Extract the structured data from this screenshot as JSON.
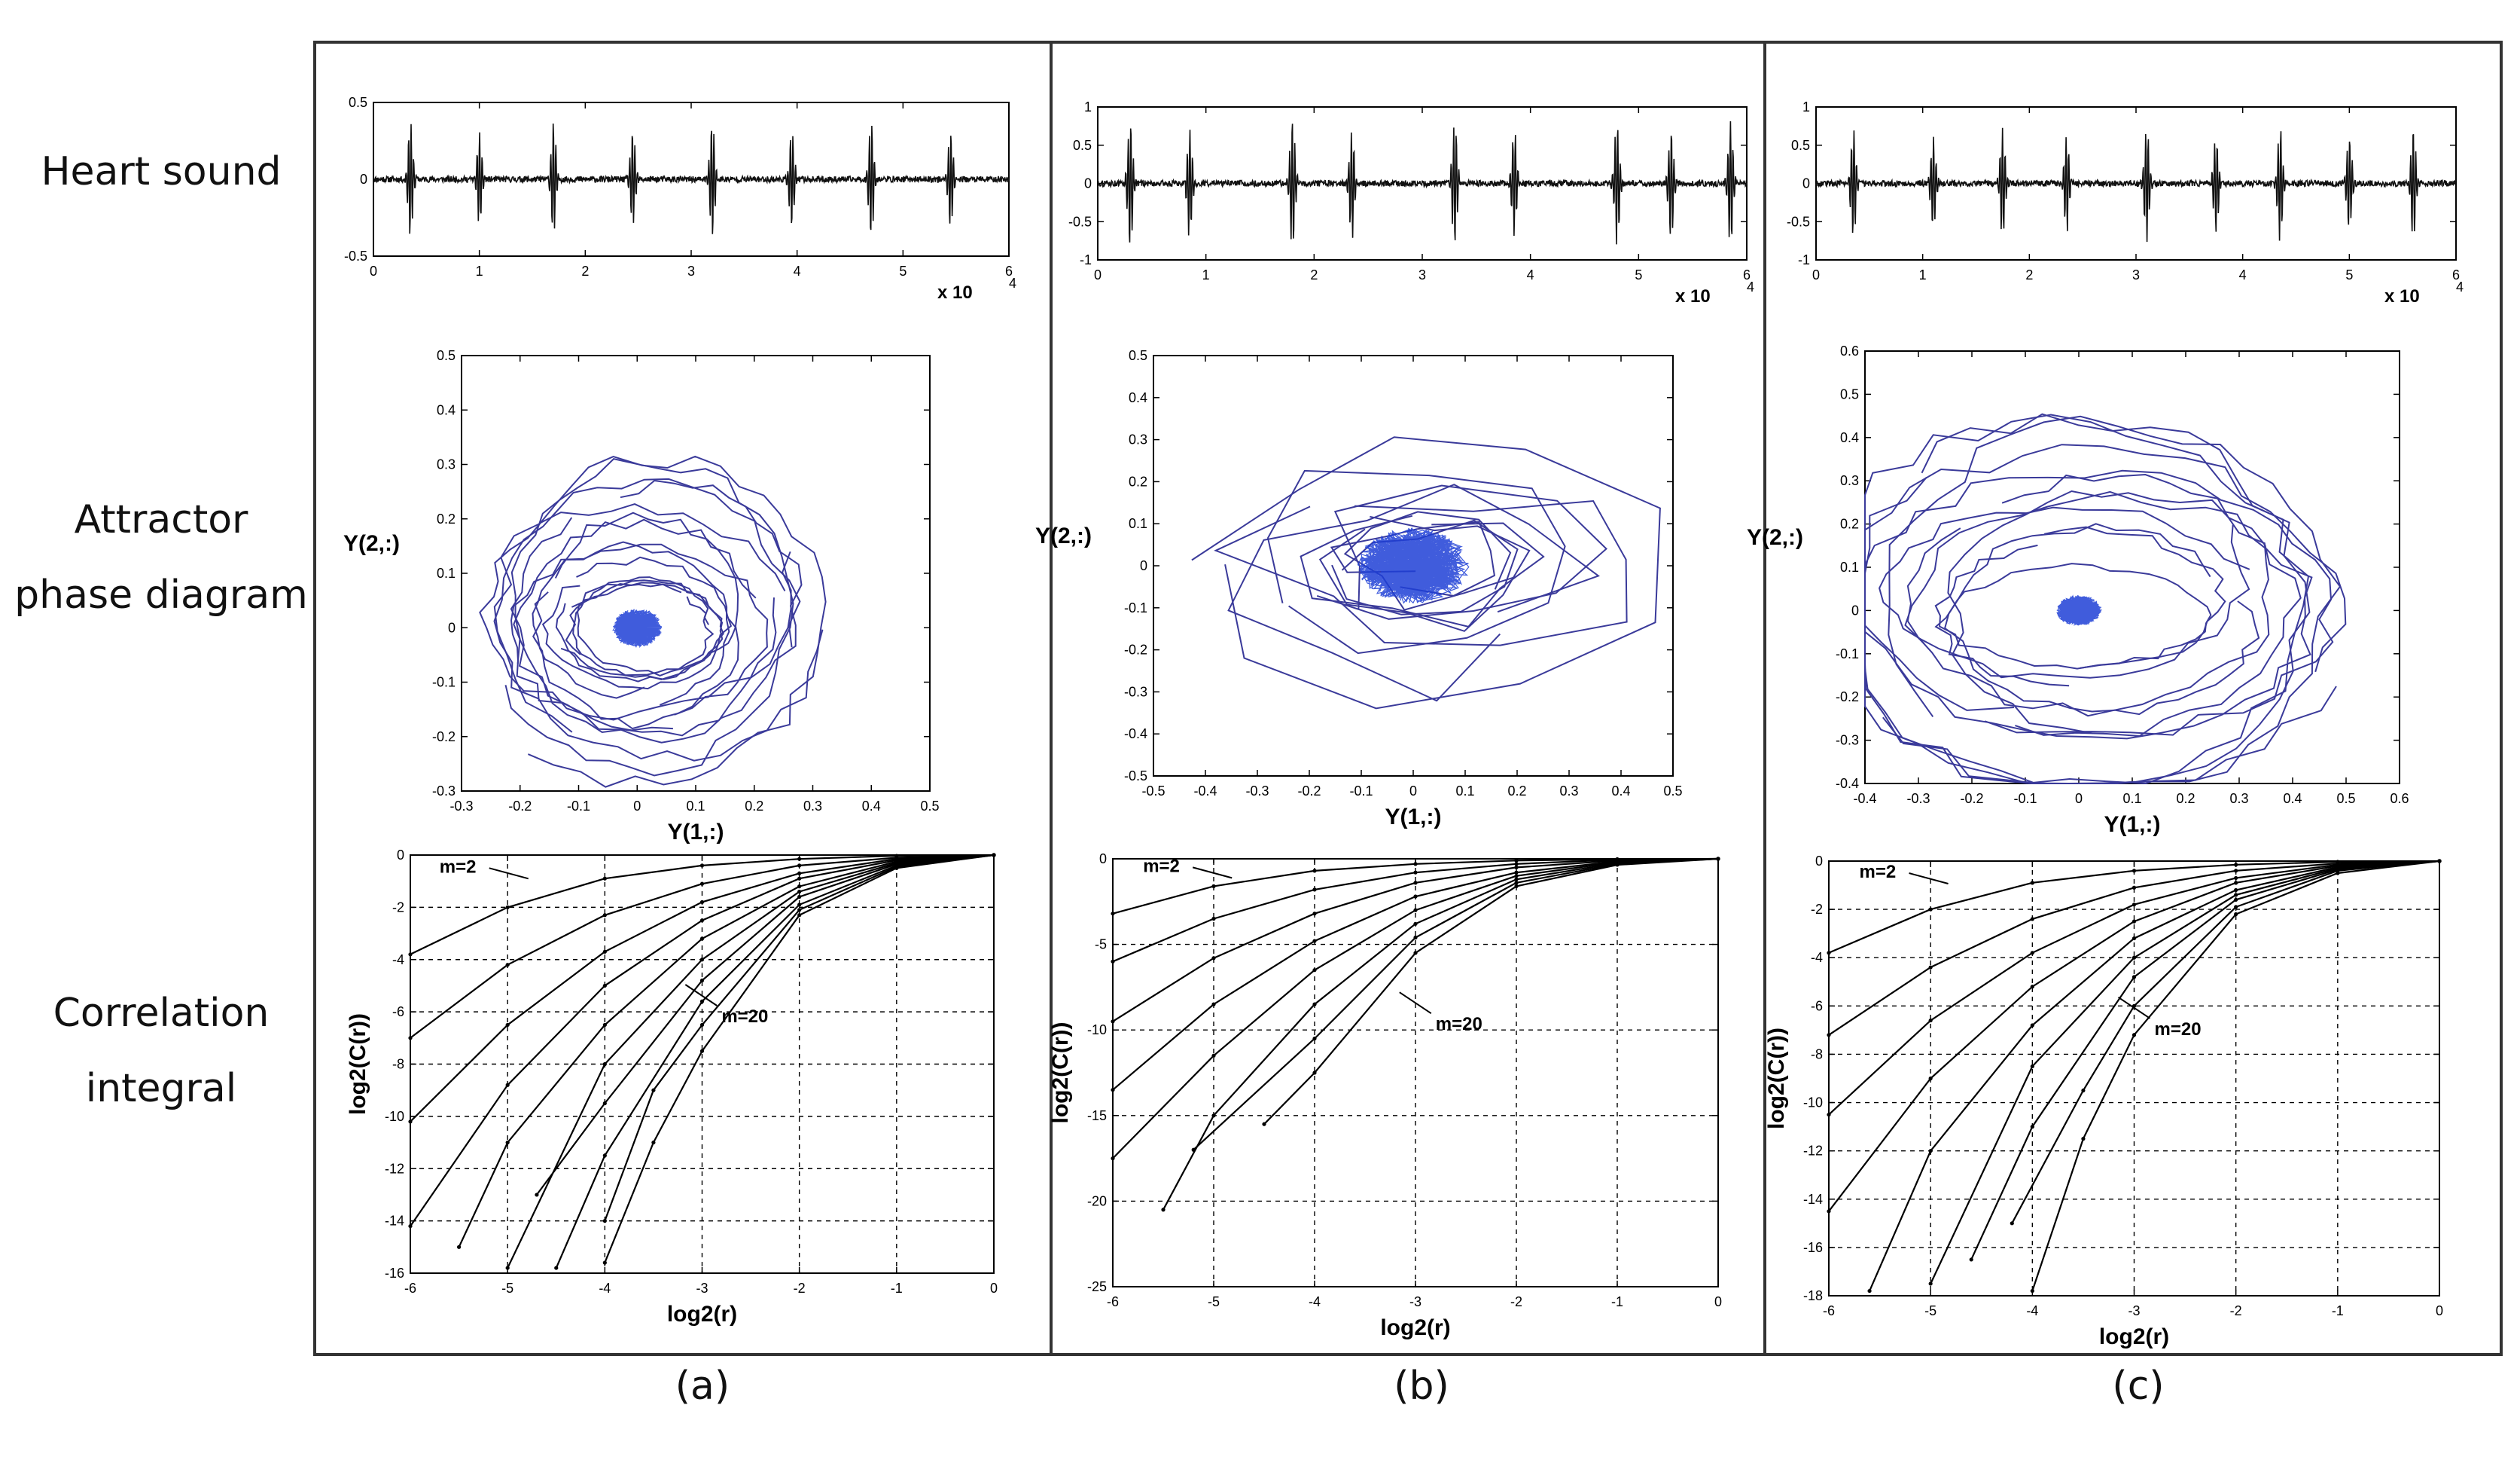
{
  "row_labels": {
    "heart_sound": "Heart sound",
    "attractor_line1": "Attractor",
    "attractor_line2": "phase diagram",
    "correlation_line1": "Correlation",
    "correlation_line2": "integral"
  },
  "captions": [
    "(a)",
    "(b)",
    "(c)"
  ],
  "colors": {
    "trace": "#111111",
    "attractor": "#3a3a9a",
    "attractor_core": "#1f3fd6",
    "grid": "#000000"
  },
  "chart_data": [
    {
      "panel": "(a)",
      "type": "line",
      "role": "heart-sound",
      "x_exponent_label": "x 10",
      "x_exponent_power": "4",
      "xlim": [
        0,
        6
      ],
      "ylim": [
        -0.5,
        0.5
      ],
      "xticks": [
        "0",
        "1",
        "2",
        "3",
        "4",
        "5",
        "6"
      ],
      "yticks": [
        "0.5",
        "0",
        "-0.5"
      ],
      "beats_x": [
        0.35,
        1.0,
        1.7,
        2.45,
        3.2,
        3.95,
        4.7,
        5.45
      ],
      "beat_amplitude": 0.38
    },
    {
      "panel": "(b)",
      "type": "line",
      "role": "heart-sound",
      "x_exponent_label": "x 10",
      "x_exponent_power": "4",
      "xlim": [
        0,
        6
      ],
      "ylim": [
        -1,
        1
      ],
      "xticks": [
        "0",
        "1",
        "2",
        "3",
        "4",
        "5",
        "6"
      ],
      "yticks": [
        "1",
        "0.5",
        "0",
        "-0.5",
        "-1"
      ],
      "beats_x": [
        0.3,
        0.85,
        1.8,
        2.35,
        3.3,
        3.85,
        4.8,
        5.3,
        5.85
      ],
      "beat_amplitude": 0.85
    },
    {
      "panel": "(c)",
      "type": "line",
      "role": "heart-sound",
      "x_exponent_label": "x 10",
      "x_exponent_power": "4",
      "xlim": [
        0,
        6
      ],
      "ylim": [
        -1,
        1
      ],
      "xticks": [
        "0",
        "1",
        "2",
        "3",
        "4",
        "5",
        "6"
      ],
      "yticks": [
        "1",
        "0.5",
        "0",
        "-0.5",
        "-1"
      ],
      "beats_x": [
        0.35,
        1.1,
        1.75,
        2.35,
        3.1,
        3.75,
        4.35,
        5.0,
        5.6
      ],
      "beat_amplitude": 0.75
    },
    {
      "panel": "(a)",
      "type": "line",
      "role": "attractor",
      "xlabel": "Y(1,:)",
      "ylabel": "Y(2,:)",
      "xlim": [
        -0.3,
        0.5
      ],
      "ylim": [
        -0.3,
        0.5
      ],
      "xticks": [
        "-0.3",
        "-0.2",
        "-0.1",
        "0",
        "0.1",
        "0.2",
        "0.3",
        "0.4",
        "0.5"
      ],
      "yticks": [
        "0.5",
        "0.4",
        "0.3",
        "0.2",
        "0.1",
        "0",
        "-0.1",
        "-0.2",
        "-0.3"
      ],
      "loop_count": 14,
      "max_radius": 0.33,
      "center": [
        0,
        0
      ]
    },
    {
      "panel": "(b)",
      "type": "line",
      "role": "attractor",
      "xlabel": "Y(1,:)",
      "ylabel": "Y(2,:)",
      "xlim": [
        -0.5,
        0.5
      ],
      "ylim": [
        -0.5,
        0.5
      ],
      "xticks": [
        "-0.5",
        "-0.4",
        "-0.3",
        "-0.2",
        "-0.1",
        "0",
        "0.1",
        "0.2",
        "0.3",
        "0.4",
        "0.5"
      ],
      "yticks": [
        "0.5",
        "0.4",
        "0.3",
        "0.2",
        "0.1",
        "0",
        "-0.1",
        "-0.2",
        "-0.3",
        "-0.4",
        "-0.5"
      ],
      "loop_count": 10,
      "max_radius": 0.45,
      "center": [
        0,
        0
      ]
    },
    {
      "panel": "(c)",
      "type": "line",
      "role": "attractor",
      "xlabel": "Y(1,:)",
      "ylabel": "Y(2,:)",
      "xlim": [
        -0.4,
        0.6
      ],
      "ylim": [
        -0.4,
        0.6
      ],
      "xticks": [
        "-0.4",
        "-0.3",
        "-0.2",
        "-0.1",
        "0",
        "0.1",
        "0.2",
        "0.3",
        "0.4",
        "0.5",
        "0.6"
      ],
      "yticks": [
        "0.6",
        "0.5",
        "0.4",
        "0.3",
        "0.2",
        "0.1",
        "0",
        "-0.1",
        "-0.2",
        "-0.3",
        "-0.4"
      ],
      "loop_count": 12,
      "max_radius": 0.5,
      "center": [
        0,
        0
      ]
    },
    {
      "panel": "(a)",
      "type": "line",
      "role": "correlation-integral",
      "xlabel": "log2(r)",
      "ylabel": "log2(C(r))",
      "xlim": [
        -6,
        0
      ],
      "ylim": [
        -16,
        0
      ],
      "xticks": [
        "-6",
        "-5",
        "-4",
        "-3",
        "-2",
        "-1",
        "0"
      ],
      "yticks": [
        "0",
        "-2",
        "-4",
        "-6",
        "-8",
        "-10",
        "-12",
        "-14",
        "-16"
      ],
      "label_low": "m=2",
      "label_high": "m=20",
      "series": [
        {
          "x": [
            -6,
            -5,
            -4,
            -3,
            -2,
            -1,
            0
          ],
          "y": [
            -3.8,
            -2.0,
            -0.9,
            -0.4,
            -0.15,
            -0.03,
            0
          ]
        },
        {
          "x": [
            -6,
            -5,
            -4,
            -3,
            -2,
            -1,
            0
          ],
          "y": [
            -7.0,
            -4.2,
            -2.3,
            -1.1,
            -0.4,
            -0.1,
            0
          ]
        },
        {
          "x": [
            -6,
            -5,
            -4,
            -3,
            -2,
            -1,
            0
          ],
          "y": [
            -10.2,
            -6.5,
            -3.7,
            -1.8,
            -0.7,
            -0.15,
            0
          ]
        },
        {
          "x": [
            -6,
            -5,
            -4,
            -3,
            -2,
            -1,
            0
          ],
          "y": [
            -14.2,
            -8.8,
            -5.0,
            -2.5,
            -0.9,
            -0.2,
            0
          ]
        },
        {
          "x": [
            -5.5,
            -5,
            -4,
            -3,
            -2,
            -1,
            0
          ],
          "y": [
            -15.0,
            -11.0,
            -6.5,
            -3.2,
            -1.2,
            -0.25,
            0
          ]
        },
        {
          "x": [
            -5,
            -4,
            -3,
            -2,
            -1,
            0
          ],
          "y": [
            -15.8,
            -8.0,
            -4.0,
            -1.4,
            -0.3,
            0
          ]
        },
        {
          "x": [
            -4.7,
            -4,
            -3,
            -2,
            -1,
            0
          ],
          "y": [
            -13.0,
            -9.5,
            -4.8,
            -1.6,
            -0.35,
            0
          ]
        },
        {
          "x": [
            -4.5,
            -4,
            -3,
            -2,
            -1,
            0
          ],
          "y": [
            -15.8,
            -11.5,
            -5.6,
            -1.9,
            -0.4,
            0
          ]
        },
        {
          "x": [
            -4,
            -3.5,
            -3,
            -2,
            -1,
            0
          ],
          "y": [
            -14.0,
            -9.0,
            -6.5,
            -2.1,
            -0.45,
            0
          ]
        },
        {
          "x": [
            -4,
            -3.5,
            -3,
            -2,
            -1,
            0
          ],
          "y": [
            -15.6,
            -11.0,
            -7.5,
            -2.3,
            -0.5,
            0
          ]
        }
      ]
    },
    {
      "panel": "(b)",
      "type": "line",
      "role": "correlation-integral",
      "xlabel": "log2(r)",
      "ylabel": "log2(C(r))",
      "xlim": [
        -6,
        0
      ],
      "ylim": [
        -25,
        0
      ],
      "xticks": [
        "-6",
        "-5",
        "-4",
        "-3",
        "-2",
        "-1",
        "0"
      ],
      "yticks": [
        "0",
        "-5",
        "-10",
        "-15",
        "-20",
        "-25"
      ],
      "label_low": "m=2",
      "label_high": "m=20",
      "series": [
        {
          "x": [
            -6,
            -5,
            -4,
            -3,
            -2,
            -1,
            0
          ],
          "y": [
            -3.2,
            -1.6,
            -0.7,
            -0.3,
            -0.1,
            -0.02,
            0
          ]
        },
        {
          "x": [
            -6,
            -5,
            -4,
            -3,
            -2,
            -1,
            0
          ],
          "y": [
            -6.0,
            -3.5,
            -1.8,
            -0.8,
            -0.3,
            -0.05,
            0
          ]
        },
        {
          "x": [
            -6,
            -5,
            -4,
            -3,
            -2,
            -1,
            0
          ],
          "y": [
            -9.5,
            -5.8,
            -3.2,
            -1.4,
            -0.5,
            -0.1,
            0
          ]
        },
        {
          "x": [
            -6,
            -5,
            -4,
            -3,
            -2,
            -1,
            0
          ],
          "y": [
            -13.5,
            -8.5,
            -4.8,
            -2.2,
            -0.8,
            -0.15,
            0
          ]
        },
        {
          "x": [
            -6,
            -5,
            -4,
            -3,
            -2,
            -1,
            0
          ],
          "y": [
            -17.5,
            -11.5,
            -6.5,
            -3.0,
            -1.0,
            -0.2,
            0
          ]
        },
        {
          "x": [
            -5.5,
            -5,
            -4,
            -3,
            -2,
            -1,
            0
          ],
          "y": [
            -20.5,
            -15.0,
            -8.5,
            -3.8,
            -1.2,
            -0.25,
            0
          ]
        },
        {
          "x": [
            -5.2,
            -4,
            -3,
            -2,
            -1,
            0
          ],
          "y": [
            -17.0,
            -10.5,
            -4.6,
            -1.4,
            -0.3,
            0
          ]
        },
        {
          "x": [
            -4.5,
            -4,
            -3,
            -2,
            -1,
            0
          ],
          "y": [
            -15.5,
            -12.5,
            -5.5,
            -1.6,
            -0.35,
            0
          ]
        }
      ]
    },
    {
      "panel": "(c)",
      "type": "line",
      "role": "correlation-integral",
      "xlabel": "log2(r)",
      "ylabel": "log2(C(r))",
      "xlim": [
        -6,
        0
      ],
      "ylim": [
        -18,
        0
      ],
      "xticks": [
        "-6",
        "-5",
        "-4",
        "-3",
        "-2",
        "-1",
        "0"
      ],
      "yticks": [
        "0",
        "-2",
        "-4",
        "-6",
        "-8",
        "-10",
        "-12",
        "-14",
        "-16",
        "-18"
      ],
      "label_low": "m=2",
      "label_high": "m=20",
      "series": [
        {
          "x": [
            -6,
            -5,
            -4,
            -3,
            -2,
            -1,
            0
          ],
          "y": [
            -3.8,
            -2.0,
            -0.9,
            -0.4,
            -0.15,
            -0.03,
            0
          ]
        },
        {
          "x": [
            -6,
            -5,
            -4,
            -3,
            -2,
            -1,
            0
          ],
          "y": [
            -7.2,
            -4.4,
            -2.4,
            -1.1,
            -0.4,
            -0.1,
            0
          ]
        },
        {
          "x": [
            -6,
            -5,
            -4,
            -3,
            -2,
            -1,
            0
          ],
          "y": [
            -10.5,
            -6.6,
            -3.8,
            -1.8,
            -0.7,
            -0.15,
            0
          ]
        },
        {
          "x": [
            -6,
            -5,
            -4,
            -3,
            -2,
            -1,
            0
          ],
          "y": [
            -14.5,
            -9.0,
            -5.2,
            -2.5,
            -0.9,
            -0.2,
            0
          ]
        },
        {
          "x": [
            -5.6,
            -5,
            -4,
            -3,
            -2,
            -1,
            0
          ],
          "y": [
            -17.8,
            -12.0,
            -6.8,
            -3.2,
            -1.2,
            -0.25,
            0
          ]
        },
        {
          "x": [
            -5,
            -4,
            -3,
            -2,
            -1,
            0
          ],
          "y": [
            -17.5,
            -8.5,
            -4.0,
            -1.4,
            -0.3,
            0
          ]
        },
        {
          "x": [
            -4.6,
            -4,
            -3,
            -2,
            -1,
            0
          ],
          "y": [
            -16.5,
            -11.0,
            -4.8,
            -1.6,
            -0.35,
            0
          ]
        },
        {
          "x": [
            -4.2,
            -3.5,
            -3,
            -2,
            -1,
            0
          ],
          "y": [
            -15.0,
            -9.5,
            -6.0,
            -1.9,
            -0.4,
            0
          ]
        },
        {
          "x": [
            -4,
            -3.5,
            -3,
            -2,
            -1,
            0
          ],
          "y": [
            -17.8,
            -11.5,
            -7.2,
            -2.2,
            -0.5,
            0
          ]
        }
      ]
    }
  ]
}
